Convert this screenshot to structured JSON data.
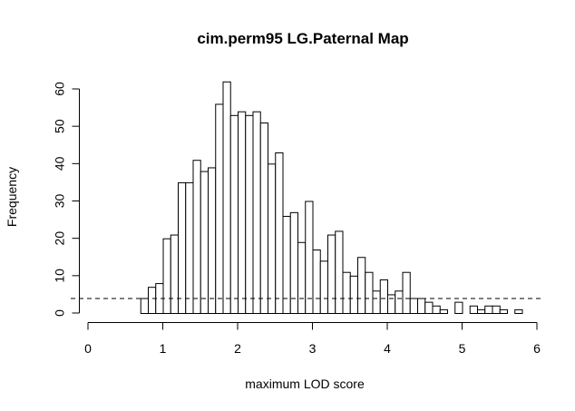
{
  "chart_data": {
    "type": "bar",
    "title": "cim.perm95 LG.Paternal Map",
    "xlabel": "maximum LOD score",
    "ylabel": "Frequency",
    "xlim": [
      0,
      6
    ],
    "ylim": [
      0,
      60
    ],
    "x_ticks": [
      "0",
      "1",
      "2",
      "3",
      "4",
      "5",
      "6"
    ],
    "y_ticks": [
      "0",
      "10",
      "20",
      "30",
      "40",
      "50",
      "60"
    ],
    "bin_width": 0.1,
    "bin_starts": [
      0.7,
      0.8,
      0.9,
      1.0,
      1.1,
      1.2,
      1.3,
      1.4,
      1.5,
      1.6,
      1.7,
      1.8,
      1.9,
      2.0,
      2.1,
      2.2,
      2.3,
      2.4,
      2.5,
      2.6,
      2.7,
      2.8,
      2.9,
      3.0,
      3.1,
      3.2,
      3.3,
      3.4,
      3.5,
      3.6,
      3.7,
      3.8,
      3.9,
      4.0,
      4.1,
      4.2,
      4.3,
      4.4,
      4.5,
      4.6,
      4.7,
      4.8,
      4.9,
      5.0,
      5.1,
      5.2,
      5.3,
      5.4,
      5.5,
      5.6,
      5.7
    ],
    "values": [
      4,
      7,
      8,
      20,
      21,
      35,
      35,
      41,
      38,
      39,
      56,
      62,
      53,
      54,
      53,
      54,
      51,
      40,
      43,
      26,
      27,
      19,
      30,
      17,
      14,
      21,
      22,
      11,
      10,
      15,
      11,
      6,
      9,
      5,
      6,
      11,
      4,
      4,
      3,
      2,
      1,
      0,
      3,
      0,
      2,
      1,
      2,
      2,
      1,
      0,
      1
    ],
    "threshold": 4,
    "grid": false
  }
}
